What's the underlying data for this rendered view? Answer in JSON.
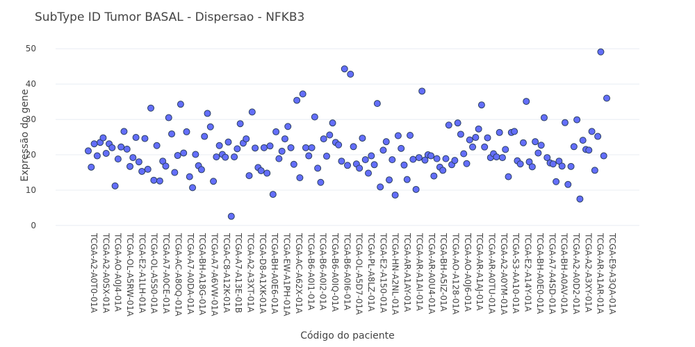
{
  "chart_data": {
    "type": "scatter",
    "title": "SubType ID Tumor BASAL - Dispersao - NFKB3",
    "xlabel": "Código do paciente",
    "ylabel": "Expressão do gene",
    "ylim": [
      -1,
      52
    ],
    "yticks": [
      0,
      10,
      20,
      30,
      40,
      50
    ],
    "grid": true,
    "marker_color": "#636efa",
    "marker_edge": "#2a3f5f",
    "x_tick_labels": [
      "TCGA-A2-A0T0-01A",
      "TCGA-A2-A0SX-01A",
      "TCGA-AO-A0J4-01A",
      "TCGA-OL-A5RW-01A",
      "TCGA-E2-A1LH-01A",
      "TCGA-OL-A5S0-01A",
      "TCGA-A7-A0CE-01A",
      "TCGA-AC-A8OQ-01A",
      "TCGA-A7-A0DA-01A",
      "TCGA-BH-A18G-01A",
      "TCGA-A7-A6VW-01A",
      "TCGA-C8-A12K-01A",
      "TCGA-A7-A13E-01B",
      "TCGA-A2-A3XT-01A",
      "TCGA-D8-A1XK-01A",
      "TCGA-BH-A0E6-01A",
      "TCGA-EW-A1PH-01A",
      "TCGA-AC-A62X-01A",
      "TCGA-B6-A0I1-01A",
      "TCGA-B6-A0I2-01A",
      "TCGA-B6-A0IQ-01A",
      "TCGA-B6-A0I6-01A",
      "TCGA-OL-A5D7-01A",
      "TCGA-PL-A8LZ-01A",
      "TCGA-E2-A150-01A",
      "TCGA-HN-A2NL-01A",
      "TCGA-AR-A1AY-01A",
      "TCGA-AR-A1AI-01A",
      "TCGA-AR-A0U4-01A",
      "TCGA-BH-A5IZ-01A",
      "TCGA-AO-A128-01A",
      "TCGA-AO-A0J6-01A",
      "TCGA-AR-A1AJ-01A",
      "TCGA-AR-A0TU-01A",
      "TCGA-A2-A0YM-01A",
      "TCGA-S3-AA10-01A",
      "TCGA-E2-A14Y-01A",
      "TCGA-BH-A0E0-01A",
      "TCGA-A7-A4SD-01A",
      "TCGA-BH-A0AV-01A",
      "TCGA-A2-A0D2-01A",
      "TCGA-A2-A3XY-01A",
      "TCGA-AR-A1AR-01A",
      "TCGA-E9-A3QA-01A"
    ],
    "y": [
      21.1,
      16.5,
      23.1,
      19.7,
      23.5,
      24.8,
      20.4,
      23.1,
      22.0,
      11.2,
      18.8,
      22.2,
      26.6,
      21.6,
      16.7,
      19.2,
      24.9,
      18.0,
      15.3,
      24.6,
      15.9,
      33.2,
      12.8,
      22.6,
      12.6,
      18.2,
      16.8,
      30.5,
      25.9,
      15.0,
      19.8,
      34.3,
      20.5,
      26.5,
      13.8,
      10.7,
      20.1,
      16.9,
      15.8,
      25.2,
      31.7,
      27.9,
      12.5,
      19.4,
      22.6,
      20.1,
      19.3,
      23.6,
      2.6,
      19.4,
      21.7,
      28.8,
      23.3,
      24.5,
      14.1,
      32.1,
      21.9,
      16.4,
      15.5,
      22.0,
      14.8,
      22.5,
      8.8,
      26.5,
      18.9,
      21.0,
      24.5,
      28.0,
      22.0,
      17.3,
      35.4,
      13.5,
      37.2,
      22.0,
      19.7,
      22.0,
      30.7,
      16.2,
      12.2,
      24.5,
      19.6,
      25.6,
      29.0,
      23.5,
      22.8,
      18.2,
      44.3,
      17.0,
      42.8,
      22.3,
      17.4,
      16.2,
      24.7,
      18.6,
      14.8,
      19.7,
      17.2,
      34.5,
      10.9,
      21.3,
      23.7,
      12.9,
      18.6,
      8.6,
      25.4,
      21.8,
      17.1,
      13.0,
      25.5,
      18.7,
      10.2,
      19.2,
      38.0,
      18.5,
      20.0,
      19.7,
      14.0,
      18.9,
      16.5,
      15.6,
      18.9,
      28.4,
      17.2,
      18.4,
      29.0,
      25.8,
      20.3,
      17.5,
      24.2,
      22.2,
      24.9,
      27.3,
      34.1,
      22.2,
      24.8,
      19.2,
      20.3,
      19.4,
      26.3,
      19.2,
      21.5,
      13.8,
      26.3,
      26.6,
      18.3,
      17.4,
      23.4,
      35.1,
      18.0,
      16.6,
      23.7,
      20.5,
      22.7,
      30.5,
      19.2,
      17.7,
      17.4,
      12.4,
      18.2,
      16.8,
      29.1,
      11.6,
      16.7,
      22.3,
      29.9,
      7.5,
      24.1,
      21.5,
      21.3,
      26.6,
      15.6,
      25.2,
      49.1,
      19.7,
      36.0
    ]
  }
}
